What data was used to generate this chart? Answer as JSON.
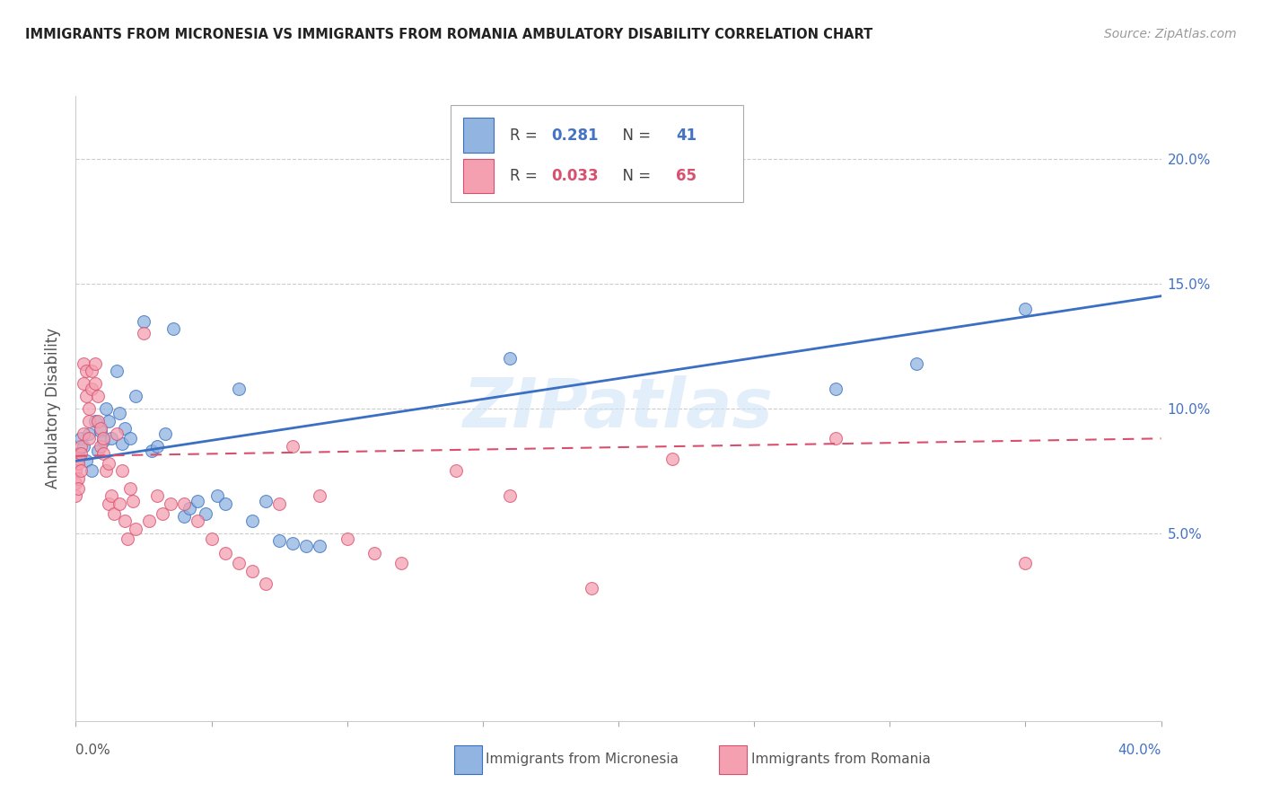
{
  "title": "IMMIGRANTS FROM MICRONESIA VS IMMIGRANTS FROM ROMANIA AMBULATORY DISABILITY CORRELATION CHART",
  "source": "Source: ZipAtlas.com",
  "ylabel": "Ambulatory Disability",
  "R_micronesia": 0.281,
  "N_micronesia": 41,
  "R_romania": 0.033,
  "N_romania": 65,
  "color_micronesia": "#91b4e0",
  "color_romania": "#f4a0b0",
  "line_color_micronesia": "#3a6fc4",
  "line_color_romania": "#d94f6e",
  "watermark": "ZIPatlas",
  "legend_label_micronesia": "Immigrants from Micronesia",
  "legend_label_romania": "Immigrants from Romania",
  "xlim": [
    0.0,
    0.4
  ],
  "ylim": [
    -0.025,
    0.225
  ],
  "micronesia_x": [
    0.001,
    0.002,
    0.003,
    0.004,
    0.005,
    0.006,
    0.007,
    0.008,
    0.009,
    0.01,
    0.011,
    0.012,
    0.013,
    0.015,
    0.016,
    0.017,
    0.018,
    0.02,
    0.022,
    0.025,
    0.028,
    0.03,
    0.033,
    0.036,
    0.04,
    0.042,
    0.045,
    0.048,
    0.052,
    0.055,
    0.06,
    0.065,
    0.07,
    0.075,
    0.08,
    0.085,
    0.09,
    0.16,
    0.28,
    0.31,
    0.35
  ],
  "micronesia_y": [
    0.082,
    0.088,
    0.085,
    0.079,
    0.09,
    0.075,
    0.095,
    0.083,
    0.091,
    0.087,
    0.1,
    0.095,
    0.088,
    0.115,
    0.098,
    0.086,
    0.092,
    0.088,
    0.105,
    0.135,
    0.083,
    0.085,
    0.09,
    0.132,
    0.057,
    0.06,
    0.063,
    0.058,
    0.065,
    0.062,
    0.108,
    0.055,
    0.063,
    0.047,
    0.046,
    0.045,
    0.045,
    0.12,
    0.108,
    0.118,
    0.14
  ],
  "romania_x": [
    0.0,
    0.0,
    0.0,
    0.001,
    0.001,
    0.001,
    0.001,
    0.002,
    0.002,
    0.002,
    0.003,
    0.003,
    0.003,
    0.004,
    0.004,
    0.005,
    0.005,
    0.005,
    0.006,
    0.006,
    0.007,
    0.007,
    0.008,
    0.008,
    0.009,
    0.009,
    0.01,
    0.01,
    0.011,
    0.012,
    0.012,
    0.013,
    0.014,
    0.015,
    0.016,
    0.017,
    0.018,
    0.019,
    0.02,
    0.021,
    0.022,
    0.025,
    0.027,
    0.03,
    0.032,
    0.035,
    0.04,
    0.045,
    0.05,
    0.055,
    0.06,
    0.065,
    0.07,
    0.075,
    0.08,
    0.09,
    0.1,
    0.11,
    0.12,
    0.14,
    0.16,
    0.19,
    0.22,
    0.28,
    0.35
  ],
  "romania_y": [
    0.075,
    0.07,
    0.065,
    0.08,
    0.078,
    0.072,
    0.068,
    0.085,
    0.082,
    0.075,
    0.118,
    0.11,
    0.09,
    0.105,
    0.115,
    0.1,
    0.095,
    0.088,
    0.115,
    0.108,
    0.118,
    0.11,
    0.095,
    0.105,
    0.085,
    0.092,
    0.088,
    0.082,
    0.075,
    0.078,
    0.062,
    0.065,
    0.058,
    0.09,
    0.062,
    0.075,
    0.055,
    0.048,
    0.068,
    0.063,
    0.052,
    0.13,
    0.055,
    0.065,
    0.058,
    0.062,
    0.062,
    0.055,
    0.048,
    0.042,
    0.038,
    0.035,
    0.03,
    0.062,
    0.085,
    0.065,
    0.048,
    0.042,
    0.038,
    0.075,
    0.065,
    0.028,
    0.08,
    0.088,
    0.038
  ]
}
